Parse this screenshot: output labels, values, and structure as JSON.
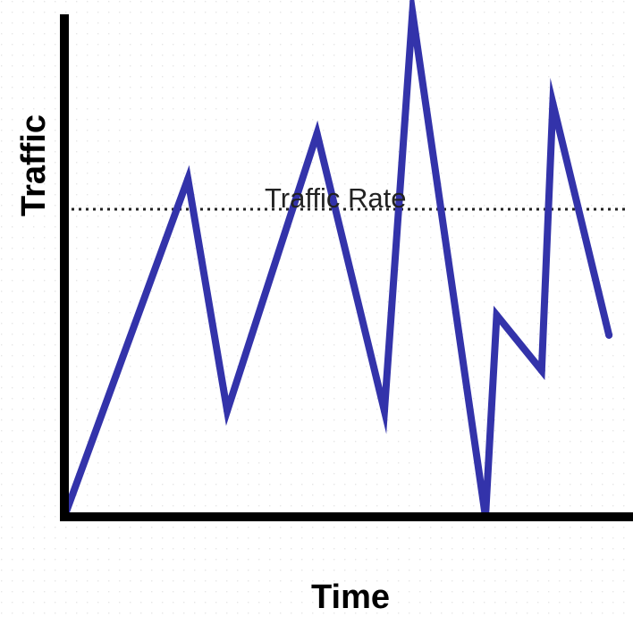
{
  "chart_data": {
    "type": "line",
    "title": "",
    "xlabel": "Time",
    "ylabel": "Traffic",
    "grid": false,
    "legend": "none",
    "xlim": [
      0,
      100
    ],
    "ylim": [
      0,
      100
    ],
    "x": [
      0,
      22,
      29,
      45,
      57,
      62,
      75,
      77,
      85,
      87,
      97
    ],
    "series": [
      {
        "values": [
          0,
          67,
          21,
          76,
          21,
          100,
          0,
          40,
          29,
          82,
          36
        ]
      }
    ],
    "reference_line": {
      "label": "Traffic Rate",
      "y": 61
    },
    "colors": {
      "series": "#3333aa",
      "axis": "#000000",
      "reference": "#222222",
      "background": "#ffffff",
      "texture_dot": "#e6e6e6"
    }
  }
}
